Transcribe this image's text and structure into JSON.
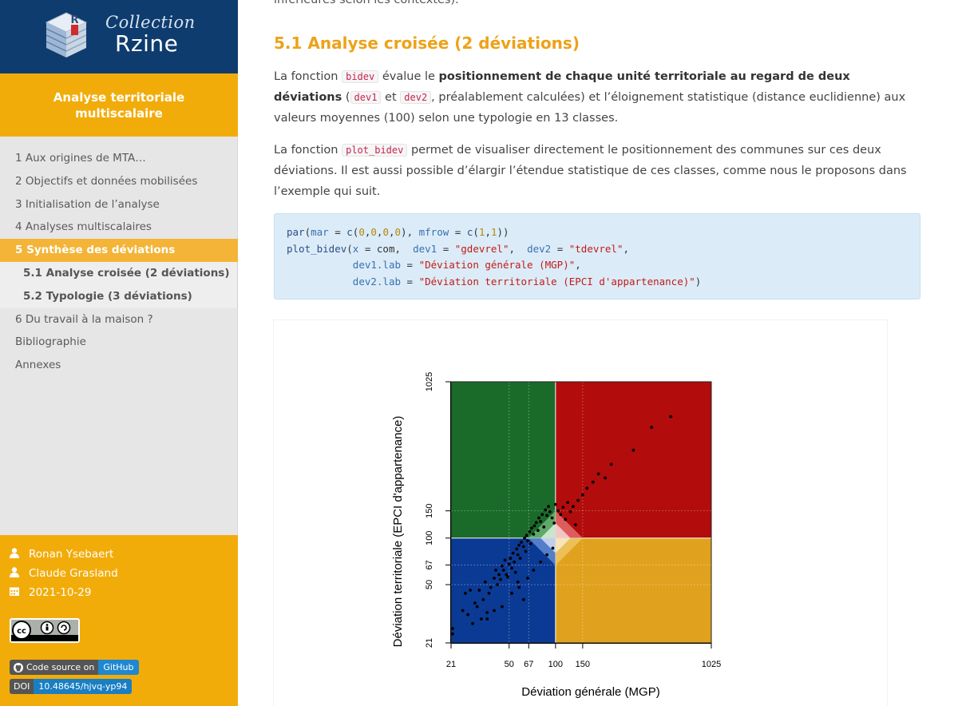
{
  "brand": {
    "top": "Collection",
    "main": "Rzine"
  },
  "book_title": [
    "Analyse territoriale",
    "multiscalaire"
  ],
  "toc": [
    {
      "label": "1 Aux origines de MTA…",
      "level": 1,
      "active": false
    },
    {
      "label": "2 Objectifs et données mobilisées",
      "level": 1,
      "active": false
    },
    {
      "label": "3 Initialisation de l’analyse",
      "level": 1,
      "active": false
    },
    {
      "label": "4 Analyses multiscalaires",
      "level": 1,
      "active": false
    },
    {
      "label": "5 Synthèse des déviations",
      "level": 1,
      "active": true
    },
    {
      "label": "5.1 Analyse croisée (2 déviations)",
      "level": 2,
      "active": false
    },
    {
      "label": "5.2 Typologie (3 déviations)",
      "level": 2,
      "active": false
    },
    {
      "label": "6 Du travail à la maison ?",
      "level": 1,
      "active": false
    },
    {
      "label": "Bibliographie",
      "level": 1,
      "active": false
    },
    {
      "label": "Annexes",
      "level": 1,
      "active": false
    }
  ],
  "authors": [
    "Ronan Ysebaert",
    "Claude Grasland"
  ],
  "date": "2021-10-29",
  "badges": {
    "code_left": "Code source on",
    "code_right": "GitHub",
    "doi_left": "DOI",
    "doi_right": "10.48645/hjvq-yp94"
  },
  "content": {
    "clipped_line": "inférieures selon les contextes).",
    "section_title": "5.1 Analyse croisée (2 déviations)",
    "p1": {
      "t1": "La fonction ",
      "code1": "bidev",
      "t2": " évalue le ",
      "bold": "positionnement de chaque unité territoriale au regard de deux déviations",
      "t3": " (",
      "code2": "dev1",
      "t4": " et ",
      "code3": "dev2",
      "t5": ", préalablement calculées) et l’éloignement statistique (distance euclidienne) aux valeurs moyennes (100) selon une typologie en 13 classes."
    },
    "p2": {
      "t1": "La fonction ",
      "code1": "plot_bidev",
      "t2": " permet de visualiser directement le positionnement des communes sur ces deux déviations. Il est aussi possible d’élargir l’étendue statistique de ces classes, comme nous le proposons dans l’exemple qui suit."
    }
  },
  "code": {
    "l1_fn": "par",
    "l1_a": "mar",
    "l1_c": "c",
    "l1_n": [
      "0",
      "0",
      "0",
      "0"
    ],
    "l1_b": "mfrow",
    "l1_n2": [
      "1",
      "1"
    ],
    "l2_fn": "plot_bidev",
    "l2_x": "x",
    "l2_obj": "com",
    "l2_d1": "dev1",
    "l2_s1": "\"gdevrel\"",
    "l2_d2": "dev2",
    "l2_s2": "\"tdevrel\"",
    "l3_a": "dev1.lab",
    "l3_s": "\"Déviation générale (MGP)\"",
    "l4_a": "dev2.lab",
    "l4_s": "\"Déviation territoriale (EPCI d'appartenance)\""
  },
  "chart_data": {
    "type": "scatter",
    "xlabel": "Déviation générale (MGP)",
    "ylabel": "Déviation territoriale (EPCI d'appartenance)",
    "scale": "log",
    "xlim": [
      21,
      1025
    ],
    "ylim": [
      21,
      1025
    ],
    "x_ticks": [
      "21",
      "50",
      "67",
      "100",
      "150",
      "1025"
    ],
    "y_ticks": [
      "21",
      "50",
      "67",
      "100",
      "150",
      "1025"
    ],
    "quadrant_colors": {
      "top_left": "#1a6b2a",
      "top_right": "#b20c0c",
      "bottom_left": "#0b3a94",
      "bottom_right": "#e0a21e"
    },
    "points": [
      [
        21.5,
        24
      ],
      [
        21.5,
        26
      ],
      [
        25,
        34
      ],
      [
        26,
        44
      ],
      [
        27,
        32
      ],
      [
        28,
        46
      ],
      [
        30,
        38
      ],
      [
        29,
        28
      ],
      [
        31,
        36
      ],
      [
        32,
        46
      ],
      [
        33,
        30
      ],
      [
        34,
        40
      ],
      [
        35,
        52
      ],
      [
        36,
        33
      ],
      [
        37,
        44
      ],
      [
        38,
        48
      ],
      [
        40,
        55
      ],
      [
        41,
        62
      ],
      [
        42,
        50
      ],
      [
        43,
        58
      ],
      [
        44,
        54
      ],
      [
        45,
        66
      ],
      [
        46,
        62
      ],
      [
        47,
        72
      ],
      [
        48,
        58
      ],
      [
        49,
        56
      ],
      [
        50,
        68
      ],
      [
        51,
        74
      ],
      [
        52,
        64
      ],
      [
        53,
        80
      ],
      [
        54,
        70
      ],
      [
        55,
        60
      ],
      [
        56,
        85
      ],
      [
        57,
        78
      ],
      [
        58,
        90
      ],
      [
        59,
        74
      ],
      [
        60,
        94
      ],
      [
        62,
        88
      ],
      [
        63,
        100
      ],
      [
        64,
        82
      ],
      [
        65,
        104
      ],
      [
        66,
        96
      ],
      [
        68,
        110
      ],
      [
        69,
        92
      ],
      [
        70,
        116
      ],
      [
        72,
        106
      ],
      [
        73,
        120
      ],
      [
        75,
        126
      ],
      [
        77,
        112
      ],
      [
        78,
        135
      ],
      [
        80,
        128
      ],
      [
        82,
        142
      ],
      [
        84,
        118
      ],
      [
        86,
        152
      ],
      [
        88,
        140
      ],
      [
        90,
        160
      ],
      [
        92,
        148
      ],
      [
        95,
        135
      ],
      [
        98,
        125
      ],
      [
        100,
        165
      ],
      [
        104,
        150
      ],
      [
        108,
        142
      ],
      [
        112,
        158
      ],
      [
        116,
        132
      ],
      [
        120,
        170
      ],
      [
        125,
        148
      ],
      [
        130,
        160
      ],
      [
        135,
        122
      ],
      [
        140,
        175
      ],
      [
        150,
        190
      ],
      [
        160,
        210
      ],
      [
        175,
        230
      ],
      [
        190,
        260
      ],
      [
        210,
        245
      ],
      [
        230,
        300
      ],
      [
        320,
        370
      ],
      [
        420,
        520
      ],
      [
        560,
        610
      ],
      [
        58,
        48
      ],
      [
        62,
        40
      ],
      [
        66,
        55
      ],
      [
        72,
        62
      ],
      [
        80,
        70
      ],
      [
        88,
        78
      ],
      [
        96,
        86
      ],
      [
        45,
        36
      ],
      [
        40,
        34
      ],
      [
        52,
        44
      ],
      [
        36,
        30
      ],
      [
        57,
        52
      ]
    ]
  }
}
